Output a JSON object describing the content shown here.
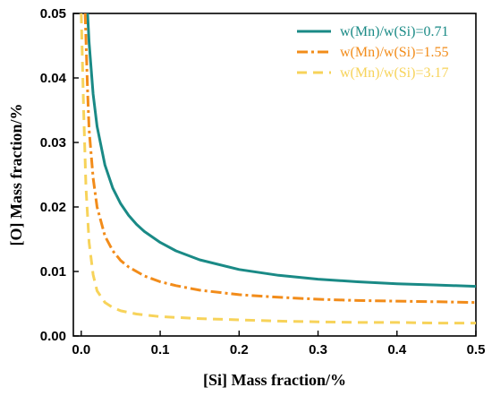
{
  "chart_data": {
    "type": "line",
    "xlabel": "[Si] Mass fraction/%",
    "ylabel": "[O] Mass fraction/%",
    "xlim": [
      -0.01,
      0.5
    ],
    "ylim": [
      0.0,
      0.05
    ],
    "x_ticks": [
      0.0,
      0.1,
      0.2,
      0.3,
      0.4,
      0.5
    ],
    "y_ticks": [
      0.0,
      0.01,
      0.02,
      0.03,
      0.04,
      0.05
    ],
    "x_tick_labels": [
      "0.0",
      "0.1",
      "0.2",
      "0.3",
      "0.4",
      "0.5"
    ],
    "y_tick_labels": [
      "0.00",
      "0.01",
      "0.02",
      "0.03",
      "0.04",
      "0.05"
    ],
    "grid": false,
    "legend_position": "top-right",
    "series": [
      {
        "name": "w(Mn)/w(Si)=0.71",
        "color": "#1a8a86",
        "dash": "solid",
        "x": [
          0.008,
          0.01,
          0.015,
          0.02,
          0.03,
          0.04,
          0.05,
          0.06,
          0.07,
          0.08,
          0.1,
          0.12,
          0.15,
          0.2,
          0.25,
          0.3,
          0.35,
          0.4,
          0.45,
          0.5
        ],
        "y": [
          0.05,
          0.0455,
          0.0375,
          0.0325,
          0.0265,
          0.0229,
          0.0205,
          0.0187,
          0.0173,
          0.0162,
          0.0145,
          0.0132,
          0.0118,
          0.0103,
          0.0094,
          0.0088,
          0.0084,
          0.0081,
          0.0079,
          0.0077
        ]
      },
      {
        "name": "w(Mn)/w(Si)=1.55",
        "color": "#f28c1a",
        "dash": "dash-dot",
        "x": [
          0.005,
          0.008,
          0.01,
          0.015,
          0.02,
          0.03,
          0.04,
          0.05,
          0.06,
          0.08,
          0.1,
          0.12,
          0.15,
          0.2,
          0.25,
          0.3,
          0.35,
          0.4,
          0.45,
          0.5
        ],
        "y": [
          0.05,
          0.038,
          0.032,
          0.0245,
          0.02,
          0.0155,
          0.0132,
          0.0117,
          0.0107,
          0.0093,
          0.0084,
          0.0078,
          0.0071,
          0.0064,
          0.006,
          0.0057,
          0.0055,
          0.0054,
          0.0053,
          0.0052
        ]
      },
      {
        "name": "w(Mn)/w(Si)=3.17",
        "color": "#f7d35a",
        "dash": "dashed",
        "x": [
          0.0,
          0.003,
          0.006,
          0.01,
          0.015,
          0.02,
          0.03,
          0.04,
          0.05,
          0.07,
          0.1,
          0.15,
          0.2,
          0.25,
          0.3,
          0.35,
          0.4,
          0.45,
          0.5
        ],
        "y": [
          0.05,
          0.035,
          0.023,
          0.0145,
          0.0095,
          0.007,
          0.0052,
          0.0044,
          0.0039,
          0.0034,
          0.003,
          0.0027,
          0.0025,
          0.0023,
          0.0022,
          0.0021,
          0.0021,
          0.002,
          0.002
        ]
      }
    ]
  }
}
